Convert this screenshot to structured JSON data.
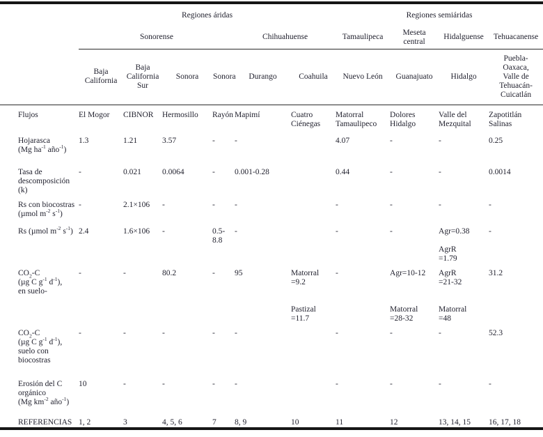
{
  "table": {
    "region_row": [
      {
        "label": "Regiones áridas",
        "span": 6
      },
      {
        "label": "Regiones semiáridas",
        "span": 4
      }
    ],
    "province_row": [
      {
        "label": "Sonorense",
        "span": 4
      },
      {
        "label": "Chihuahuense",
        "span": 2
      },
      {
        "label": "Tamaulipeca",
        "span": 1
      },
      {
        "label": "Meseta\ncentral",
        "span": 1
      },
      {
        "label": "Hidalguense",
        "span": 1
      },
      {
        "label": "Tehuacanense",
        "span": 1
      }
    ],
    "state_row": [
      "Baja\nCalifornia",
      "Baja\nCalifornia\nSur",
      "Sonora",
      "Sonora",
      "Durango",
      "Coahuila",
      "Nuevo León",
      "Guanajuato",
      "Hidalgo",
      "Puebla-\nOaxaca,\nValle de\nTehuacán-\nCuicatlán"
    ],
    "rows": [
      {
        "label": "Flujos",
        "cells": [
          "El Mogor",
          "CIBNOR",
          "Hermosillo",
          "Rayón",
          "Mapimí",
          "Cuatro\nCiénegas",
          "Matorral\nTamaulipeco",
          "Dolores\nHidalgo",
          "Valle del\nMezquital",
          "Zapotitlán\nSalinas"
        ]
      },
      {
        "label": "Hojarasca\n(Mg ha^-1^ año^-1^)",
        "cells": [
          "1.3",
          "1.21",
          "3.57",
          "-",
          "-",
          "",
          "4.07",
          "-",
          "-",
          "0.25"
        ]
      },
      {
        "label": "Tasa de\ndescomposición\n(k)",
        "cells": [
          "-",
          "0.021",
          "0.0064",
          "-",
          "0.001-0.28",
          "",
          "0.44",
          "-",
          "-",
          "0.0014"
        ]
      },
      {
        "label": "Rs con biocostras\n(µmol m^-2^ s^-1^)",
        "cells": [
          "-",
          "2.1×106",
          "-",
          "-",
          "-",
          "",
          "-",
          "-",
          "-",
          "-"
        ]
      },
      {
        "label": "Rs (µmol m^-2^ s^-1^)",
        "cells": [
          "2.4",
          "1.6×106",
          "-",
          "0.5-8.8",
          "-",
          "",
          "-",
          "-",
          "Agr=0.38\n\nAgrR\n=1.79",
          "-"
        ]
      },
      {
        "label": "CO~2~-C\n(µg C g^-1^ d^-1^),\nen suelo-",
        "cells": [
          "-",
          "-",
          "80.2",
          "-",
          "95",
          "Matorral\n=9.2\n\n\nPastizal\n=11.7",
          "-",
          "Agr=10-12\n\n\n\nMatorral\n=28-32",
          "AgrR\n=21-32\n\n\nMatorral\n=48",
          "31.2"
        ]
      },
      {
        "label": "CO~2~-C\n(µg C g^-1^ d^-1^),\nsuelo con\nbiocostras",
        "cells": [
          "-",
          "-",
          "-",
          "-",
          "-",
          "",
          "-",
          "-",
          "-",
          "52.3"
        ]
      },
      {
        "label": "Erosión del C\norgánico\n(Mg km^-2^ año^-1^)",
        "cells": [
          "10",
          "-",
          "-",
          "-",
          "-",
          "",
          "-",
          "-",
          "-",
          "-"
        ]
      },
      {
        "label": "REFERENCIAS",
        "cells": [
          "1, 2",
          "3",
          "4, 5, 6",
          "7",
          "8, 9",
          "10",
          "11",
          "12",
          "13, 14, 15",
          "16, 17, 18"
        ]
      }
    ]
  }
}
